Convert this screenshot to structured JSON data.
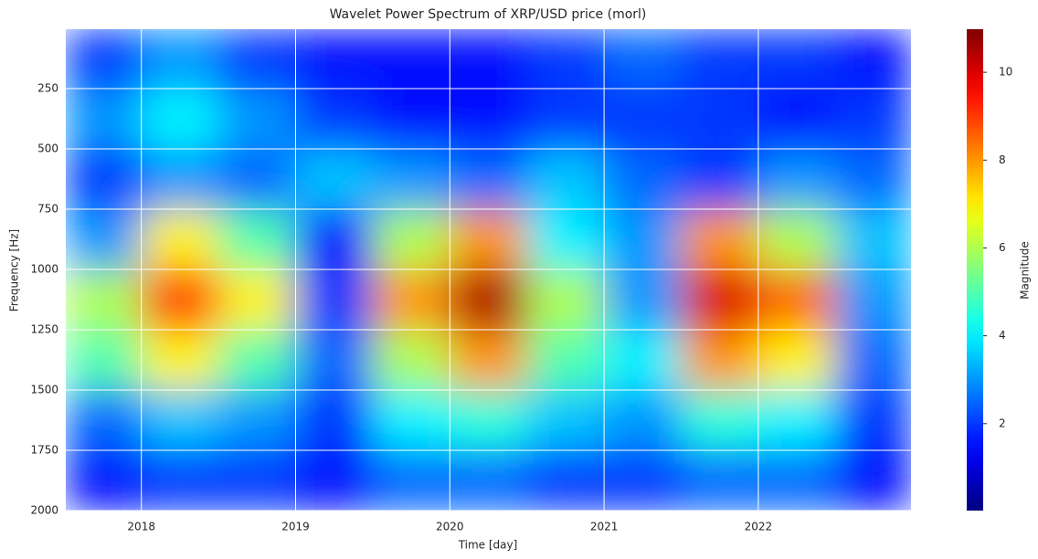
{
  "chart_data": {
    "type": "heatmap",
    "title": "Wavelet Power Spectrum of XRP/USD price (morl)",
    "x_label": "Time [day]",
    "y_label": "Frequency [Hz]",
    "colorbar_label": "Magnitude",
    "colormap": "jet",
    "grid": true,
    "y_inverted": true,
    "x_bins": [
      2017.51,
      2018.0,
      2018.5,
      2019.0,
      2019.5,
      2020.0,
      2020.5,
      2021.0,
      2021.5,
      2022.0,
      2022.5,
      2022.99
    ],
    "y_bins": [
      4,
      250,
      500,
      750,
      1000,
      1250,
      1500,
      1750,
      2000
    ],
    "values": [
      [
        2,
        3,
        2,
        1.5,
        1.5,
        1.5,
        2,
        2.5,
        2,
        2,
        1.5
      ],
      [
        3,
        4,
        3,
        2,
        1.5,
        1.5,
        2,
        2,
        2,
        1.5,
        2
      ],
      [
        2,
        3,
        2.5,
        3.5,
        3,
        2.5,
        3.5,
        2.5,
        2,
        3,
        2.5
      ],
      [
        3,
        7,
        5,
        1.5,
        6,
        8,
        4,
        3,
        8,
        6,
        3.5
      ],
      [
        6,
        9,
        7,
        2,
        8,
        10.5,
        6,
        3,
        10,
        8.5,
        3
      ],
      [
        5,
        7,
        5,
        2.5,
        6,
        8,
        5,
        4,
        8,
        7,
        2.5
      ],
      [
        2.5,
        3.5,
        3,
        2,
        4,
        4.5,
        3.5,
        3,
        4.5,
        4,
        2
      ],
      [
        1.5,
        2,
        2,
        1.5,
        2.5,
        2.5,
        2,
        2,
        2.5,
        2.5,
        1.5
      ]
    ],
    "xlim": [
      2017.51,
      2022.99
    ],
    "xticks": [
      2018,
      2019,
      2020,
      2021,
      2022
    ],
    "ylim": [
      4,
      2000
    ],
    "yticks": [
      250,
      500,
      750,
      1000,
      1250,
      1500,
      1750,
      2000
    ],
    "clim": [
      0.02,
      10.98
    ],
    "cticks": [
      2,
      4,
      6,
      8,
      10
    ]
  }
}
